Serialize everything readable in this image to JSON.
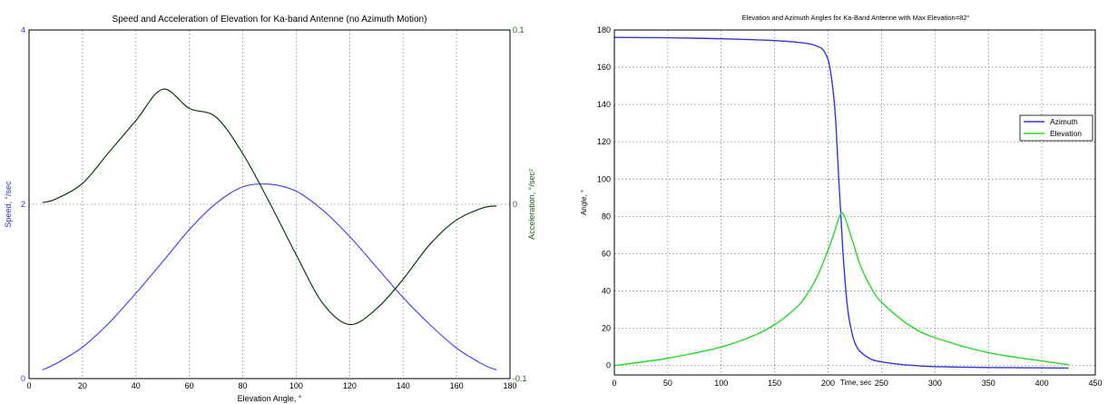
{
  "chart_data": [
    {
      "type": "line",
      "title": "Speed and Acceleration of Elevation for Ka-band Antenne (no Azimuth Motion)",
      "xlabel": "Elevation Angle, °",
      "ylabel_left": "Speed, °/sec",
      "ylabel_right": "Acceleration, °/sec²",
      "xlim": [
        0,
        180
      ],
      "xticks": [
        0,
        20,
        40,
        60,
        80,
        100,
        120,
        140,
        160,
        180
      ],
      "ylim_left": [
        0,
        4
      ],
      "yticks_left": [
        0,
        2,
        4
      ],
      "ylim_right": [
        -0.1,
        0.1
      ],
      "yticks_right": [
        -0.1,
        0,
        0.1
      ],
      "grid": true,
      "colors": {
        "left_axis": "#3333cc",
        "right_axis": "#1a5c1a",
        "speed": "#4a4af0",
        "accel": "#0f3d0f"
      },
      "series": [
        {
          "axis": "left",
          "x": [
            5,
            10,
            20,
            30,
            40,
            50,
            60,
            70,
            80,
            90,
            100,
            110,
            120,
            130,
            140,
            150,
            160,
            170,
            175
          ],
          "values": [
            0.1,
            0.17,
            0.36,
            0.64,
            0.98,
            1.34,
            1.71,
            2.01,
            2.2,
            2.23,
            2.15,
            1.93,
            1.63,
            1.28,
            0.93,
            0.62,
            0.35,
            0.16,
            0.1
          ]
        },
        {
          "axis": "right",
          "x": [
            5,
            10,
            20,
            30,
            40,
            50,
            60,
            70,
            80,
            90,
            100,
            110,
            120,
            130,
            140,
            150,
            160,
            170,
            175
          ],
          "values": [
            0.001,
            0.003,
            0.012,
            0.03,
            0.048,
            0.066,
            0.055,
            0.05,
            0.029,
            0.001,
            -0.029,
            -0.057,
            -0.069,
            -0.06,
            -0.043,
            -0.023,
            -0.009,
            -0.002,
            -0.001
          ]
        }
      ]
    },
    {
      "type": "line",
      "title": "Elevation and Azimuth Angles for Ka-Band Antenne with Max Elevation=82°",
      "xlabel": "Time, sec",
      "ylabel": "Angle, °",
      "xlim": [
        0,
        450
      ],
      "xticks": [
        0,
        50,
        100,
        150,
        200,
        250,
        300,
        350,
        400,
        450
      ],
      "ylim": [
        -5,
        180
      ],
      "yticks": [
        0,
        20,
        40,
        60,
        80,
        100,
        120,
        140,
        160,
        180
      ],
      "grid": true,
      "legend": "right",
      "series": [
        {
          "name": "Azimuth",
          "color": "#3333ee",
          "x": [
            0,
            50,
            100,
            150,
            180,
            190,
            195,
            200,
            203,
            206,
            208,
            210,
            212,
            214,
            216,
            218,
            220,
            223,
            226,
            230,
            240,
            250,
            270,
            300,
            350,
            400,
            425
          ],
          "values": [
            176,
            175.8,
            175.3,
            174.3,
            172.8,
            171.2,
            169.5,
            164,
            155,
            140,
            122,
            100,
            80,
            60,
            44,
            32,
            24,
            16,
            11,
            7.5,
            3.5,
            2,
            0.5,
            -0.5,
            -1,
            -1.2,
            -1.3
          ]
        },
        {
          "name": "Elevation",
          "color": "#22dd22",
          "x": [
            0,
            50,
            100,
            130,
            150,
            170,
            180,
            190,
            200,
            205,
            210,
            213,
            216,
            220,
            225,
            230,
            240,
            250,
            275,
            300,
            350,
            400,
            425
          ],
          "values": [
            0,
            4,
            10,
            16,
            22,
            31,
            38,
            48,
            62,
            70,
            79,
            82,
            79,
            72,
            63,
            54,
            42,
            34,
            22,
            15,
            7,
            2.5,
            0.5
          ]
        }
      ]
    }
  ]
}
